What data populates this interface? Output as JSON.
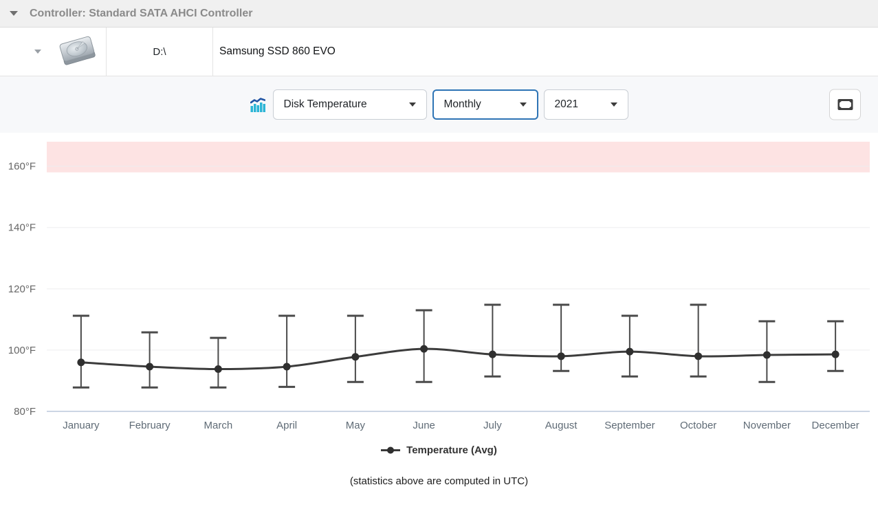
{
  "header": {
    "title": "Controller: Standard SATA AHCI Controller"
  },
  "disk_row": {
    "drive_letter": "D:\\",
    "model": "Samsung SSD 860 EVO",
    "icon": "hard-drive"
  },
  "toolbar": {
    "chart_icon": "bar-chart-trend",
    "metric_dropdown": {
      "value": "Disk Temperature"
    },
    "period_dropdown": {
      "value": "Monthly",
      "focused": true
    },
    "year_dropdown": {
      "value": "2021"
    },
    "fullscreen_icon": "fullscreen-frame"
  },
  "colors": {
    "accent_focus_border": "#2e74b5",
    "danger_zone": "#fde3e3",
    "series_line": "#3c3c3c",
    "error_bar": "#4a4a4a",
    "icon_bars_cyan": "#2cb5d6",
    "icon_line_blue": "#2255a4",
    "axis_line": "#ccd6e4",
    "gridline": "#ededef"
  },
  "chart_data": {
    "type": "line",
    "title": "Disk Temperature, Monthly, 2021",
    "categories": [
      "January",
      "February",
      "March",
      "April",
      "May",
      "June",
      "July",
      "August",
      "September",
      "October",
      "November",
      "December"
    ],
    "series": [
      {
        "name": "Temperature (Avg)",
        "color": "#3c3c3c",
        "values": [
          96.0,
          94.6,
          93.8,
          94.6,
          97.8,
          100.4,
          98.6,
          98.0,
          99.5,
          98.0,
          98.4,
          98.6
        ]
      }
    ],
    "error_bars": {
      "max": [
        111.2,
        105.8,
        104.0,
        111.2,
        111.2,
        113.0,
        114.8,
        114.8,
        111.2,
        114.8,
        109.4,
        109.4
      ],
      "min": [
        87.8,
        87.8,
        87.8,
        88.0,
        89.6,
        89.6,
        91.4,
        93.2,
        91.4,
        91.4,
        89.6,
        93.2
      ]
    },
    "y_unit": "°F",
    "yticks": [
      80,
      100,
      120,
      140,
      160
    ],
    "ylim": [
      80,
      168
    ],
    "danger_zone": {
      "from": 158,
      "to": 168,
      "color": "#fde3e3"
    },
    "grid": true,
    "legend_position": "bottom",
    "note": "(statistics above are computed in UTC)"
  }
}
